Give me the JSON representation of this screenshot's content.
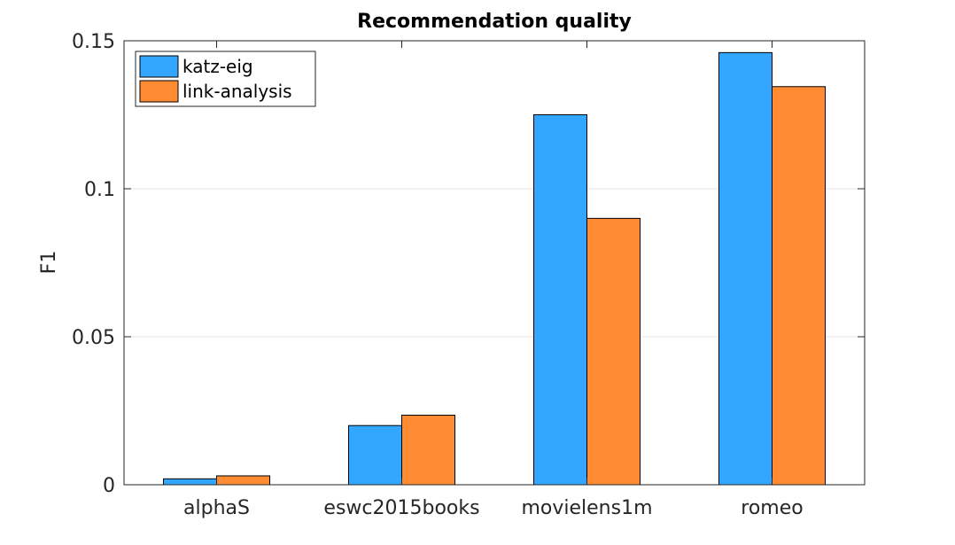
{
  "chart_data": {
    "type": "bar",
    "title": "Recommendation quality",
    "xlabel": "",
    "ylabel": "F1",
    "ylim": [
      0,
      0.15
    ],
    "yticks": [
      0,
      0.05,
      0.1,
      0.15
    ],
    "ytick_labels": [
      "0",
      "0.05",
      "0.1",
      "0.15"
    ],
    "grid": "y",
    "legend_position": "top-left",
    "categories": [
      "alphaS",
      "eswc2015books",
      "movielens1m",
      "romeo"
    ],
    "series": [
      {
        "name": "katz-eig",
        "color": "#33a6ff",
        "values": [
          0.002,
          0.02,
          0.125,
          0.146
        ]
      },
      {
        "name": "link-analysis",
        "color": "#ff8c33",
        "values": [
          0.003,
          0.0235,
          0.09,
          0.1345
        ]
      }
    ]
  }
}
